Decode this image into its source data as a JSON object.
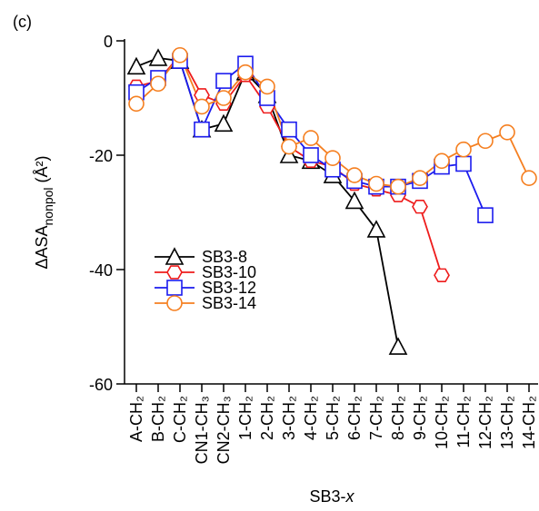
{
  "chart_data": {
    "type": "line",
    "panel_label": "(c)",
    "y_label": {
      "main": "ΔASA",
      "sub": "nonpol",
      "unit": " (Å²)"
    },
    "x_label": {
      "main": "SB3-",
      "italic": "x"
    },
    "categories": [
      "A-CH₂",
      "B-CH₂",
      "C-CH₂",
      "CN1-CH₃",
      "CN2-CH₃",
      "1-CH₂",
      "2-CH₂",
      "3-CH₂",
      "4-CH₂",
      "5-CH₂",
      "6-CH₂",
      "7-CH₂",
      "8-CH₂",
      "9-CH₂",
      "10-CH₂",
      "11-CH₂",
      "12-CH₂",
      "13-CH₂",
      "14-CH₂"
    ],
    "ylim": [
      -60,
      0
    ],
    "yticks": [
      0,
      -20,
      -40,
      -60
    ],
    "legend": "lower-left",
    "series": [
      {
        "name": "SB3-8",
        "color": "#000000",
        "marker": "triangle",
        "values": [
          -4.5,
          -3,
          -3.5,
          -15.5,
          -14.5,
          -5.5,
          -9.5,
          -20,
          -21,
          -23.5,
          -28,
          -33,
          -53.5,
          null,
          null,
          null,
          null,
          null,
          null
        ]
      },
      {
        "name": "SB3-10",
        "color": "#ee1c1c",
        "marker": "hexagon",
        "values": [
          -8,
          -7,
          -2.5,
          -9.5,
          -11,
          -6,
          -11.5,
          -18.5,
          -21,
          -22,
          -25,
          -26,
          -27,
          -29,
          -41,
          null,
          null,
          null,
          null
        ]
      },
      {
        "name": "SB3-12",
        "color": "#1c1cee",
        "marker": "square",
        "values": [
          -9,
          -6.5,
          -3.5,
          -15.5,
          -7,
          -4,
          -10,
          -15.5,
          -20,
          -22.5,
          -24.5,
          -25.5,
          -25.5,
          -24.5,
          -22,
          -21.5,
          -30.5,
          null,
          null
        ]
      },
      {
        "name": "SB3-14",
        "color": "#f57f20",
        "marker": "circle",
        "values": [
          -11,
          -7.5,
          -2.5,
          -11.5,
          -10,
          -5.5,
          -8,
          -18.5,
          -17,
          -20.5,
          -23.5,
          -25,
          -25.5,
          -24,
          -21,
          -19,
          -17.5,
          -16,
          -24
        ]
      }
    ]
  }
}
